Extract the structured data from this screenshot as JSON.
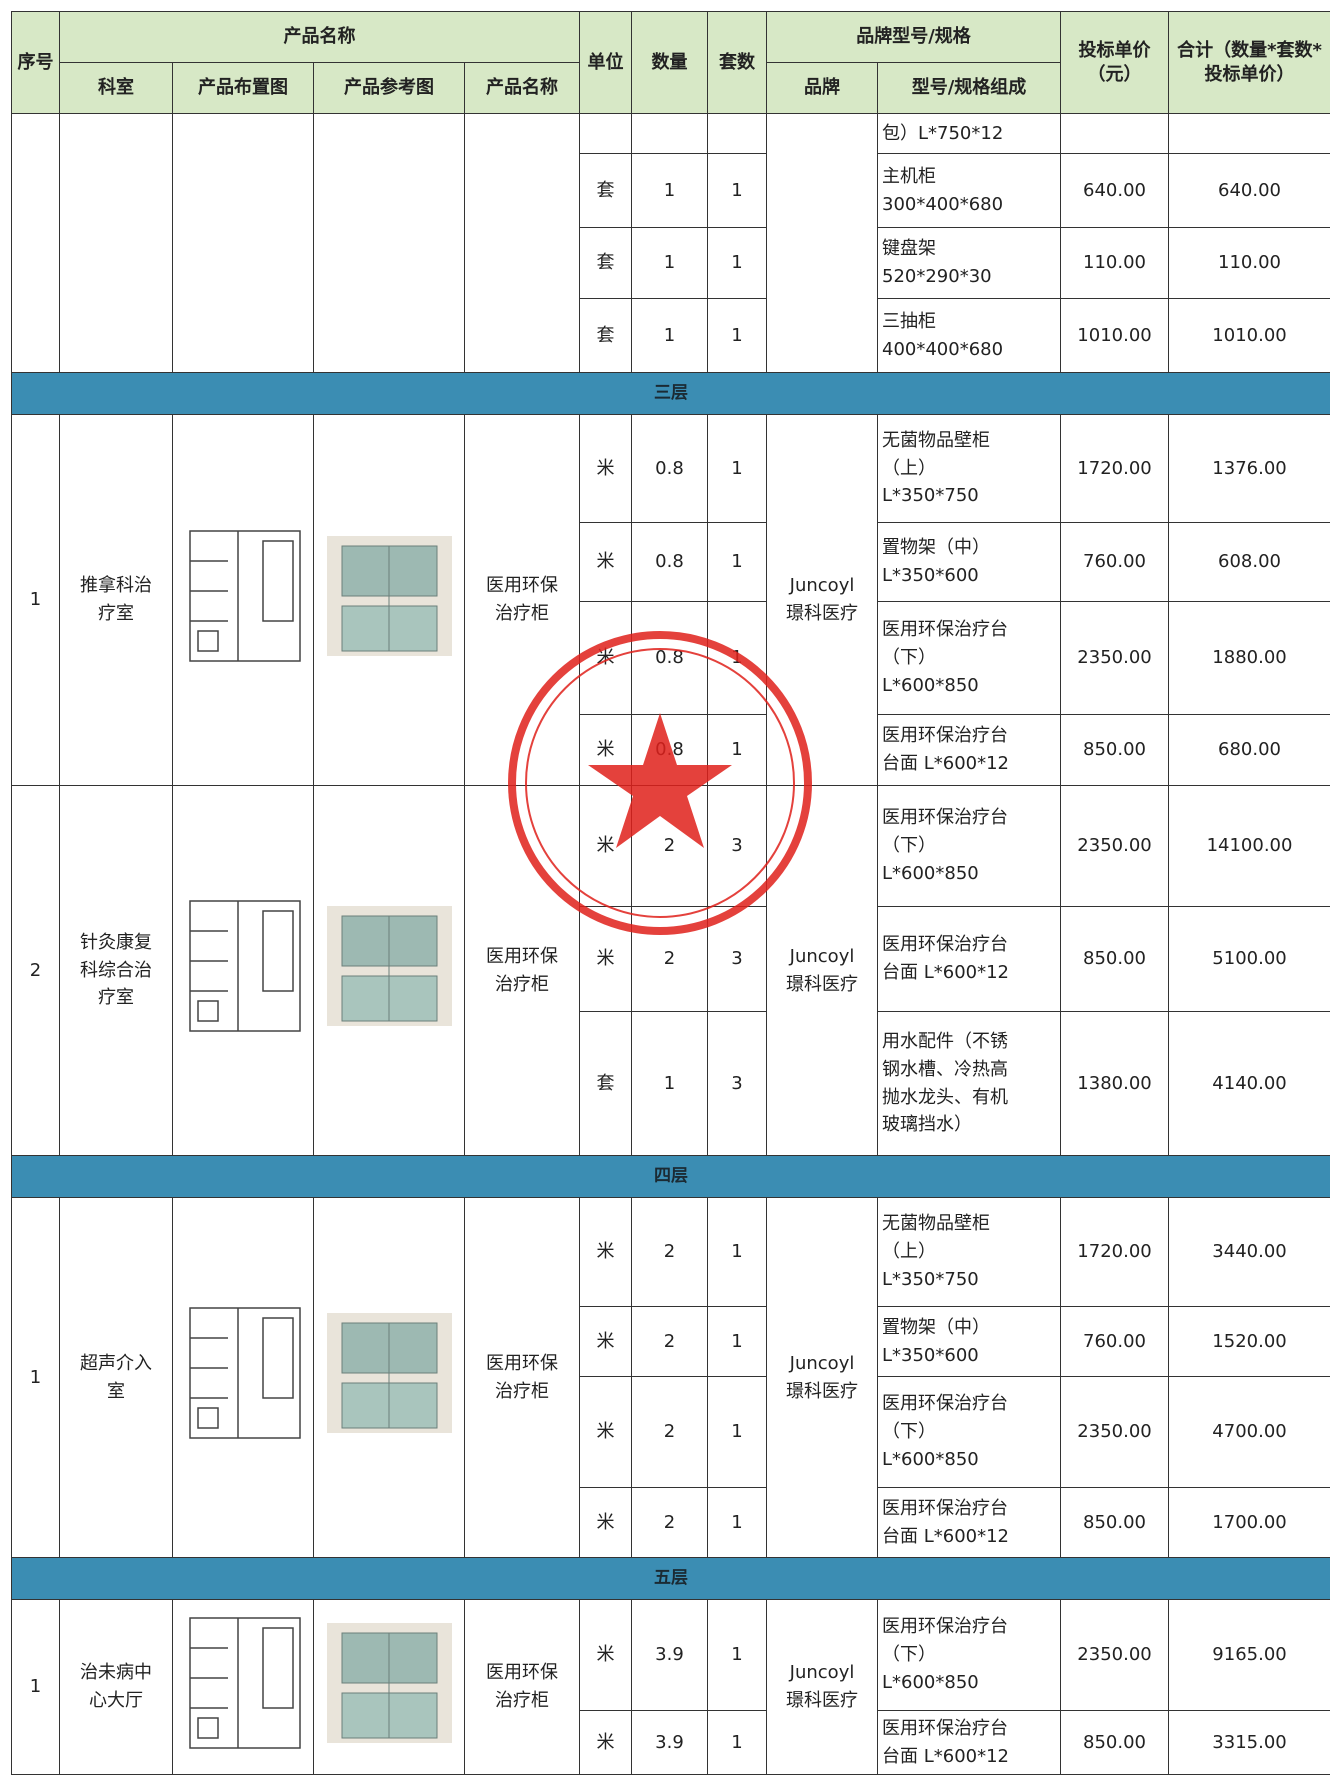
{
  "header": {
    "seq": "序号",
    "product_name": "产品名称",
    "unit": "单位",
    "qty": "数量",
    "sets": "套数",
    "brand_model": "品牌型号/规格",
    "price": "投标单价（元）",
    "total": "合计（数量*套数*投标单价）",
    "dept": "科室",
    "layout": "产品布置图",
    "ref": "产品参考图",
    "name": "产品名称",
    "brand": "品牌",
    "model": "型号/规格组成"
  },
  "groups": [
    {
      "rows": [
        {
          "model": "包）L*750*12"
        },
        {
          "unit": "套",
          "qty": "1",
          "sets": "1",
          "model": "主机柜\n300*400*680",
          "price": "640.00",
          "total": "640.00"
        },
        {
          "unit": "套",
          "qty": "1",
          "sets": "1",
          "model": "键盘架\n520*290*30",
          "price": "110.00",
          "total": "110.00"
        },
        {
          "unit": "套",
          "qty": "1",
          "sets": "1",
          "model": "三抽柜\n400*400*680",
          "price": "1010.00",
          "total": "1010.00"
        }
      ]
    },
    {
      "section": "三层"
    },
    {
      "seq": "1",
      "dept": "推拿科治\n疗室",
      "name": "医用环保\n治疗柜",
      "brand": "Juncoyl\n璟科医疗",
      "rows": [
        {
          "unit": "米",
          "qty": "0.8",
          "sets": "1",
          "model": "无菌物品壁柜\n（上）\nL*350*750",
          "price": "1720.00",
          "total": "1376.00"
        },
        {
          "unit": "米",
          "qty": "0.8",
          "sets": "1",
          "model": "置物架（中）\nL*350*600",
          "price": "760.00",
          "total": "608.00"
        },
        {
          "unit": "米",
          "qty": "0.8",
          "sets": "1",
          "model": "医用环保治疗台\n（下）\nL*600*850",
          "price": "2350.00",
          "total": "1880.00"
        },
        {
          "unit": "米",
          "qty": "0.8",
          "sets": "1",
          "model": "医用环保治疗台\n台面 L*600*12",
          "price": "850.00",
          "total": "680.00"
        }
      ]
    },
    {
      "seq": "2",
      "dept": "针灸康复\n科综合治\n疗室",
      "name": "医用环保\n治疗柜",
      "brand": "Juncoyl\n璟科医疗",
      "rows": [
        {
          "unit": "米",
          "qty": "2",
          "sets": "3",
          "model": "医用环保治疗台\n（下）\nL*600*850",
          "price": "2350.00",
          "total": "14100.00"
        },
        {
          "unit": "米",
          "qty": "2",
          "sets": "3",
          "model": "医用环保治疗台\n台面 L*600*12",
          "price": "850.00",
          "total": "5100.00"
        },
        {
          "unit": "套",
          "qty": "1",
          "sets": "3",
          "model": "用水配件（不锈\n钢水槽、冷热高\n抛水龙头、有机\n玻璃挡水）",
          "price": "1380.00",
          "total": "4140.00"
        }
      ]
    },
    {
      "section": "四层"
    },
    {
      "seq": "1",
      "dept": "超声介入\n室",
      "name": "医用环保\n治疗柜",
      "brand": "Juncoyl\n璟科医疗",
      "rows": [
        {
          "unit": "米",
          "qty": "2",
          "sets": "1",
          "model": "无菌物品壁柜\n（上）\nL*350*750",
          "price": "1720.00",
          "total": "3440.00"
        },
        {
          "unit": "米",
          "qty": "2",
          "sets": "1",
          "model": "置物架（中）\nL*350*600",
          "price": "760.00",
          "total": "1520.00"
        },
        {
          "unit": "米",
          "qty": "2",
          "sets": "1",
          "model": "医用环保治疗台\n（下）\nL*600*850",
          "price": "2350.00",
          "total": "4700.00"
        },
        {
          "unit": "米",
          "qty": "2",
          "sets": "1",
          "model": "医用环保治疗台\n台面 L*600*12",
          "price": "850.00",
          "total": "1700.00"
        }
      ]
    },
    {
      "section": "五层"
    },
    {
      "seq": "1",
      "dept": "治未病中\n心大厅",
      "name": "医用环保\n治疗柜",
      "brand": "Juncoyl\n璟科医疗",
      "rows": [
        {
          "unit": "米",
          "qty": "3.9",
          "sets": "1",
          "model": "医用环保治疗台\n（下）\nL*600*850",
          "price": "2350.00",
          "total": "9165.00"
        },
        {
          "unit": "米",
          "qty": "3.9",
          "sets": "1",
          "model": "医用环保治疗台\n台面 L*600*12",
          "price": "850.00",
          "total": "3315.00"
        }
      ]
    }
  ]
}
